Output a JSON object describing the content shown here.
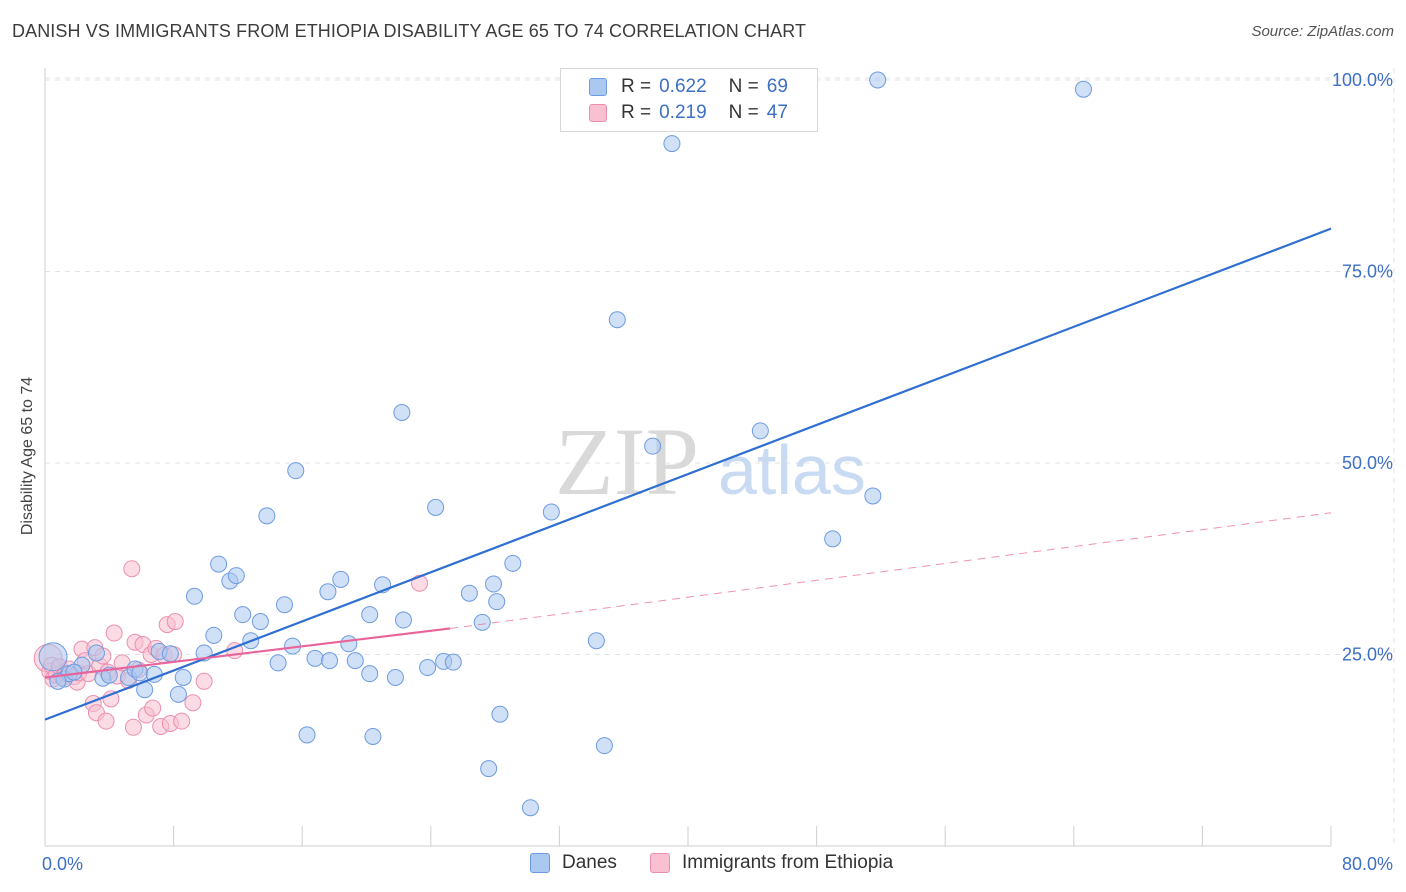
{
  "title": "DANISH VS IMMIGRANTS FROM ETHIOPIA DISABILITY AGE 65 TO 74 CORRELATION CHART",
  "source": "Source: ZipAtlas.com",
  "watermark": {
    "zip": "ZIP",
    "atlas": "atlas"
  },
  "colors": {
    "danes_fill": "#aac8f0",
    "danes_stroke": "#6d9be0",
    "danes_line": "#2f6fd1",
    "eth_fill": "#f8c0d0",
    "eth_stroke": "#ec8fae",
    "eth_line": "#e8649a",
    "tick_text": "#3d6fc4",
    "grid": "#e3e3e3"
  },
  "legend_top": [
    {
      "r_label": "R =",
      "r_value": "0.622",
      "n_label": "N =",
      "n_value": "69",
      "swatch": "danes"
    },
    {
      "r_label": "R =",
      "r_value": "0.219",
      "n_label": "N =",
      "n_value": "47",
      "swatch": "eth"
    }
  ],
  "legend_bottom": [
    {
      "label": "Danes",
      "swatch": "danes"
    },
    {
      "label": "Immigrants from Ethiopia",
      "swatch": "eth"
    }
  ],
  "chart_data": {
    "type": "scatter",
    "title": "DANISH VS IMMIGRANTS FROM ETHIOPIA DISABILITY AGE 65 TO 74 CORRELATION CHART",
    "xlabel": "",
    "ylabel": "Disability Age 65 to 74",
    "xlim": [
      0,
      80
    ],
    "ylim": [
      0,
      102
    ],
    "x_tick_labels": [
      {
        "value": 0,
        "label": "0.0%"
      },
      {
        "value": 80,
        "label": "80.0%"
      }
    ],
    "y_tick_labels": [
      {
        "value": 25,
        "label": "25.0%"
      },
      {
        "value": 50,
        "label": "50.0%"
      },
      {
        "value": 75,
        "label": "75.0%"
      },
      {
        "value": 100,
        "label": "100.0%"
      }
    ],
    "x_minor_ticks": [
      8,
      16,
      24,
      32,
      40,
      48,
      56,
      64,
      72
    ],
    "series": [
      {
        "name": "Danes",
        "color": "danes",
        "R": 0.622,
        "N": 69,
        "points": [
          [
            0.5,
            24.7
          ],
          [
            1.2,
            21.8
          ],
          [
            1.5,
            22.5
          ],
          [
            2.3,
            23.6
          ],
          [
            3.2,
            25.2
          ],
          [
            3.6,
            21.9
          ],
          [
            4.0,
            22.3
          ],
          [
            5.2,
            22.0
          ],
          [
            5.6,
            23.1
          ],
          [
            5.9,
            22.6
          ],
          [
            6.2,
            20.4
          ],
          [
            6.8,
            22.4
          ],
          [
            7.1,
            25.4
          ],
          [
            7.8,
            25.1
          ],
          [
            8.3,
            19.8
          ],
          [
            8.6,
            22.0
          ],
          [
            9.3,
            32.6
          ],
          [
            9.9,
            25.2
          ],
          [
            10.5,
            27.5
          ],
          [
            10.8,
            36.8
          ],
          [
            11.5,
            34.6
          ],
          [
            11.9,
            35.3
          ],
          [
            12.3,
            30.2
          ],
          [
            12.8,
            26.8
          ],
          [
            13.4,
            29.3
          ],
          [
            13.8,
            43.1
          ],
          [
            14.5,
            23.9
          ],
          [
            14.9,
            31.5
          ],
          [
            15.4,
            26.1
          ],
          [
            15.6,
            49.0
          ],
          [
            16.3,
            14.5
          ],
          [
            16.8,
            24.5
          ],
          [
            17.6,
            33.2
          ],
          [
            17.7,
            24.2
          ],
          [
            18.4,
            34.8
          ],
          [
            18.9,
            26.4
          ],
          [
            19.3,
            24.2
          ],
          [
            20.2,
            22.5
          ],
          [
            20.2,
            30.2
          ],
          [
            20.4,
            14.3
          ],
          [
            21.0,
            34.1
          ],
          [
            21.8,
            22.0
          ],
          [
            22.2,
            56.6
          ],
          [
            22.3,
            29.5
          ],
          [
            23.8,
            23.3
          ],
          [
            24.3,
            44.2
          ],
          [
            24.8,
            24.1
          ],
          [
            25.4,
            24.0
          ],
          [
            26.4,
            33.0
          ],
          [
            27.2,
            29.2
          ],
          [
            27.6,
            10.1
          ],
          [
            27.9,
            34.2
          ],
          [
            28.1,
            31.9
          ],
          [
            28.3,
            17.2
          ],
          [
            29.1,
            36.9
          ],
          [
            30.2,
            5.0
          ],
          [
            31.5,
            43.6
          ],
          [
            34.3,
            26.8
          ],
          [
            34.8,
            13.1
          ],
          [
            35.6,
            68.7
          ],
          [
            37.8,
            52.2
          ],
          [
            39.0,
            91.7
          ],
          [
            44.5,
            54.2
          ],
          [
            49.0,
            40.1
          ],
          [
            51.5,
            45.7
          ],
          [
            51.8,
            100.0
          ],
          [
            64.6,
            98.8
          ],
          [
            0.8,
            21.5
          ],
          [
            1.8,
            22.7
          ]
        ],
        "trend": {
          "x0": 0,
          "y0": 16.5,
          "x1": 80,
          "y1": 80.6,
          "style": "solid"
        }
      },
      {
        "name": "Immigrants from Ethiopia",
        "color": "eth",
        "R": 0.219,
        "N": 47,
        "points": [
          [
            0.2,
            24.5
          ],
          [
            0.3,
            22.8
          ],
          [
            0.4,
            23.6
          ],
          [
            0.5,
            21.8
          ],
          [
            0.7,
            22.3
          ],
          [
            0.9,
            23.4
          ],
          [
            1.1,
            22.0
          ],
          [
            1.3,
            22.5
          ],
          [
            1.5,
            23.1
          ],
          [
            1.8,
            22.1
          ],
          [
            2.0,
            21.4
          ],
          [
            2.1,
            22.6
          ],
          [
            2.3,
            25.7
          ],
          [
            2.5,
            24.2
          ],
          [
            2.7,
            22.5
          ],
          [
            3.0,
            18.6
          ],
          [
            3.1,
            25.9
          ],
          [
            3.2,
            17.4
          ],
          [
            3.4,
            23.5
          ],
          [
            3.6,
            24.8
          ],
          [
            3.8,
            16.3
          ],
          [
            3.9,
            22.7
          ],
          [
            4.1,
            19.2
          ],
          [
            4.3,
            27.8
          ],
          [
            4.5,
            22.2
          ],
          [
            4.8,
            23.9
          ],
          [
            5.2,
            21.6
          ],
          [
            5.4,
            36.2
          ],
          [
            5.5,
            15.5
          ],
          [
            5.6,
            26.6
          ],
          [
            5.8,
            23.0
          ],
          [
            6.1,
            26.3
          ],
          [
            6.3,
            17.1
          ],
          [
            6.6,
            25.0
          ],
          [
            6.7,
            18.0
          ],
          [
            6.9,
            25.8
          ],
          [
            7.2,
            15.6
          ],
          [
            7.4,
            24.9
          ],
          [
            7.6,
            28.9
          ],
          [
            7.8,
            16.0
          ],
          [
            8.0,
            25.0
          ],
          [
            8.1,
            29.3
          ],
          [
            8.5,
            16.3
          ],
          [
            9.2,
            18.7
          ],
          [
            9.9,
            21.5
          ],
          [
            11.8,
            25.5
          ],
          [
            23.3,
            34.3
          ]
        ],
        "trend": {
          "x0": 0,
          "y0": 22.0,
          "x1": 25.2,
          "y1": 28.4,
          "style": "solid",
          "extension": {
            "x1": 80,
            "y1": 43.5,
            "style": "dashed"
          }
        }
      }
    ]
  }
}
